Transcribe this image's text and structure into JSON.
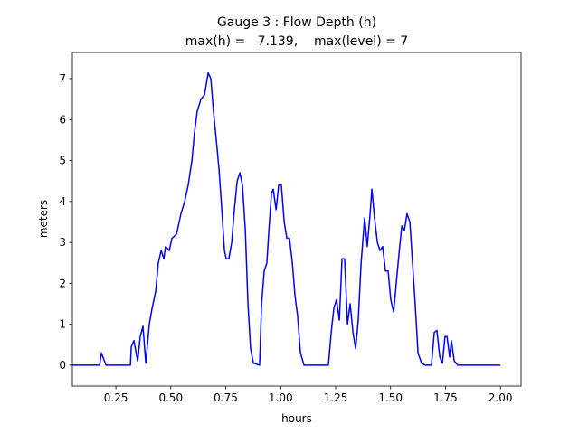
{
  "chart_data": {
    "type": "line",
    "title": "Gauge 3 : Flow Depth (h)",
    "subtitle": "max(h) =   7.139,    max(level) = 7",
    "xlabel": "hours",
    "ylabel": "meters",
    "xlim": [
      0.052,
      2.094
    ],
    "ylim": [
      -0.51,
      7.64
    ],
    "xticks": [
      0.25,
      {
        "value": 0.5,
        "label": "0.50"
      },
      0.75,
      {
        "value": 1.0,
        "label": "1.00"
      },
      1.25,
      {
        "value": 1.5,
        "label": "1.50"
      },
      1.75,
      {
        "value": 2.0,
        "label": "2.00"
      }
    ],
    "yticks": [
      0,
      1,
      2,
      3,
      4,
      5,
      6,
      7
    ],
    "grid": false,
    "x": [
      0.052,
      0.176,
      0.184,
      0.205,
      0.316,
      0.32,
      0.332,
      0.349,
      0.361,
      0.373,
      0.386,
      0.402,
      0.415,
      0.431,
      0.443,
      0.456,
      0.468,
      0.476,
      0.493,
      0.505,
      0.526,
      0.546,
      0.563,
      0.579,
      0.596,
      0.608,
      0.62,
      0.637,
      0.653,
      0.67,
      0.682,
      0.694,
      0.707,
      0.719,
      0.732,
      0.744,
      0.752,
      0.764,
      0.777,
      0.789,
      0.802,
      0.814,
      0.826,
      0.839,
      0.851,
      0.863,
      0.876,
      0.904,
      0.913,
      0.925,
      0.937,
      0.945,
      0.958,
      0.966,
      0.979,
      0.991,
      1.003,
      1.016,
      1.028,
      1.04,
      1.053,
      1.065,
      1.077,
      1.09,
      1.106,
      1.217,
      1.23,
      1.242,
      1.254,
      1.267,
      1.279,
      1.291,
      1.304,
      1.316,
      1.329,
      1.341,
      1.353,
      1.366,
      1.382,
      1.394,
      1.407,
      1.415,
      1.427,
      1.44,
      1.452,
      1.464,
      1.477,
      1.489,
      1.501,
      1.514,
      1.526,
      1.538,
      1.551,
      1.563,
      1.575,
      1.588,
      1.6,
      1.612,
      1.625,
      1.641,
      1.658,
      1.686,
      1.699,
      1.711,
      1.724,
      1.736,
      1.748,
      1.757,
      1.769,
      1.777,
      1.79,
      1.806,
      2.0
    ],
    "series": [
      {
        "name": "h",
        "color": "#0000ff",
        "values": [
          0,
          0,
          0.3,
          0,
          0,
          0.45,
          0.6,
          0.1,
          0.7,
          0.95,
          0.05,
          1.0,
          1.4,
          1.8,
          2.5,
          2.8,
          2.6,
          2.9,
          2.8,
          3.1,
          3.2,
          3.7,
          4.0,
          4.4,
          5.0,
          5.7,
          6.2,
          6.5,
          6.6,
          7.139,
          7.0,
          6.2,
          5.5,
          4.8,
          3.8,
          2.8,
          2.6,
          2.6,
          3.0,
          3.8,
          4.5,
          4.7,
          4.4,
          3.3,
          1.5,
          0.4,
          0.05,
          0,
          1.5,
          2.3,
          2.5,
          3.2,
          4.2,
          4.3,
          3.8,
          4.4,
          4.4,
          3.5,
          3.1,
          3.1,
          2.5,
          1.7,
          1.2,
          0.3,
          0,
          0,
          0.8,
          1.4,
          1.6,
          1.1,
          2.6,
          2.6,
          1.0,
          1.5,
          0.8,
          0.4,
          1.1,
          2.5,
          3.6,
          2.9,
          3.7,
          4.3,
          3.6,
          3.0,
          2.8,
          2.9,
          2.3,
          2.3,
          1.6,
          1.3,
          2.0,
          2.7,
          3.4,
          3.3,
          3.7,
          3.5,
          2.5,
          1.5,
          0.3,
          0.05,
          0,
          0,
          0.8,
          0.85,
          0.2,
          0.05,
          0.7,
          0.7,
          0.2,
          0.6,
          0.1,
          0,
          0
        ]
      }
    ]
  }
}
